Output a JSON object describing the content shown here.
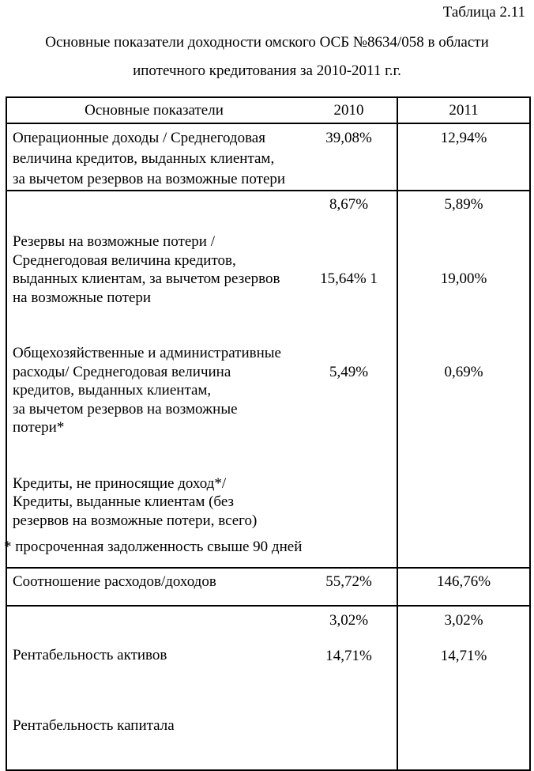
{
  "page": {
    "table_caption": "Таблица 2.11",
    "title_line1": "Основные показатели доходности омского ОСБ №8634/058 в области",
    "title_line2": "ипотечного кредитования за 2010-2011 г.г.",
    "footnote": "* просроченная задолженность свыше 90 дней"
  },
  "table": {
    "header": {
      "indicators": "Основные показатели",
      "col2010": "2010",
      "col2011": "2011"
    },
    "row_operating": {
      "label": "Операционные доходы / Среднегодовая\nвеличина кредитов, выданных клиентам,\nза вычетом резервов на возможные потери",
      "v2010": "39,08%",
      "v2011": "12,94%"
    },
    "block_entries": [
      {
        "label": "Резервы на возможные потери /\nСреднегодовая величина кредитов,\nвыданных клиентам, за вычетом резервов\nна возможные потери",
        "v2010": "8,67%",
        "v2011": "5,89%"
      },
      {
        "label": "Общехозяйственные и административные\nрасходы/ Среднегодовая величина\nкредитов, выданных клиентам,\nза вычетом резервов на возможные\nпотери*",
        "v2010": "15,64% 1",
        "v2011": "19,00%"
      },
      {
        "label": "Кредиты, не приносящие доход*/\nКредиты, выданные клиентам (без\nрезервов на возможные потери, всего)",
        "v2010": "5,49%",
        "v2011": "0,69%"
      }
    ],
    "row_ratio": {
      "label": "Соотношение расходов/доходов",
      "v2010": "55,72%",
      "v2011": "146,76%"
    },
    "rent_entries": [
      {
        "label": "Рентабельность активов",
        "v2010": "3,02%",
        "v2011": "3,02%"
      },
      {
        "label": "Рентабельность капитала",
        "v2010": "14,71%",
        "v2011": "14,71%"
      }
    ]
  }
}
